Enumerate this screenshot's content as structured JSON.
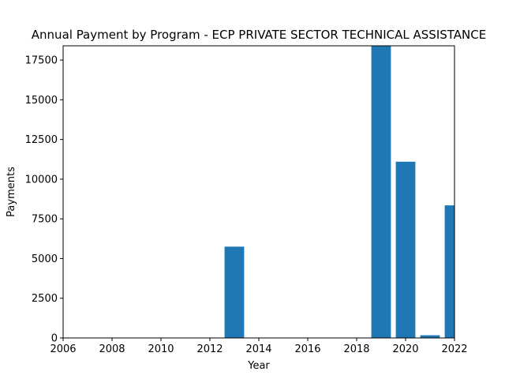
{
  "chart_data": {
    "type": "bar",
    "title": "Annual Payment by Program - ECP PRIVATE SECTOR TECHNICAL ASSISTANCE",
    "xlabel": "Year",
    "ylabel": "Payments",
    "x": [
      2013,
      2019,
      2020,
      2021,
      2022
    ],
    "values": [
      5750,
      18400,
      11100,
      170,
      8350
    ],
    "xlim": [
      2006,
      2022
    ],
    "ylim": [
      0,
      18400
    ],
    "xticks": [
      "2006",
      "2008",
      "2010",
      "2012",
      "2014",
      "2016",
      "2018",
      "2020",
      "2022"
    ],
    "yticks": [
      "0",
      "2500",
      "5000",
      "7500",
      "10000",
      "12500",
      "15000",
      "17500"
    ],
    "bar_color": "#1f77b4",
    "grid": false,
    "legend": "none"
  }
}
